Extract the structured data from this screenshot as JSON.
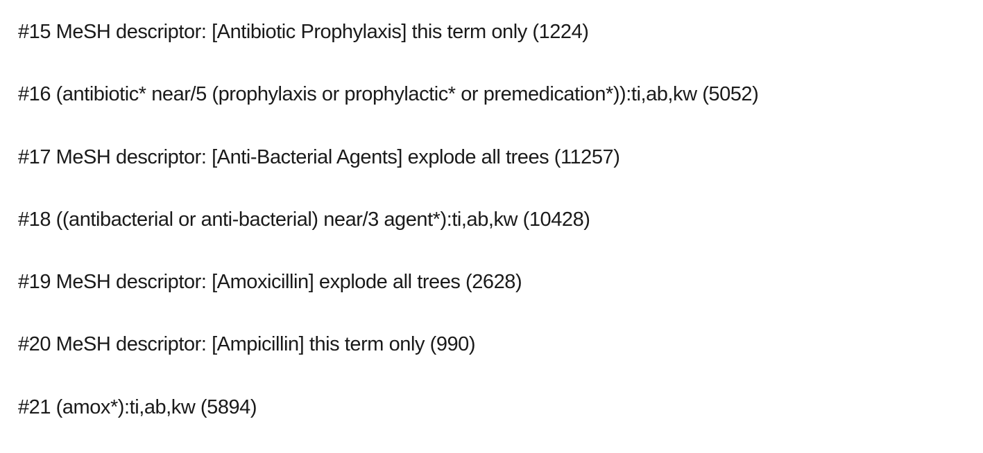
{
  "search_lines": [
    "#15 MeSH descriptor: [Antibiotic Prophylaxis] this term only (1224)",
    "#16 (antibiotic* near/5 (prophylaxis or prophylactic* or premedication*)):ti,ab,kw (5052)",
    "#17 MeSH descriptor: [Anti-Bacterial Agents] explode all trees (11257)",
    "#18 ((antibacterial or anti-bacterial) near/3 agent*):ti,ab,kw (10428)",
    "#19 MeSH descriptor: [Amoxicillin] explode all trees (2628)",
    "#20 MeSH descriptor: [Ampicillin] this term only (990)",
    "#21 (amox*):ti,ab,kw (5894)"
  ]
}
